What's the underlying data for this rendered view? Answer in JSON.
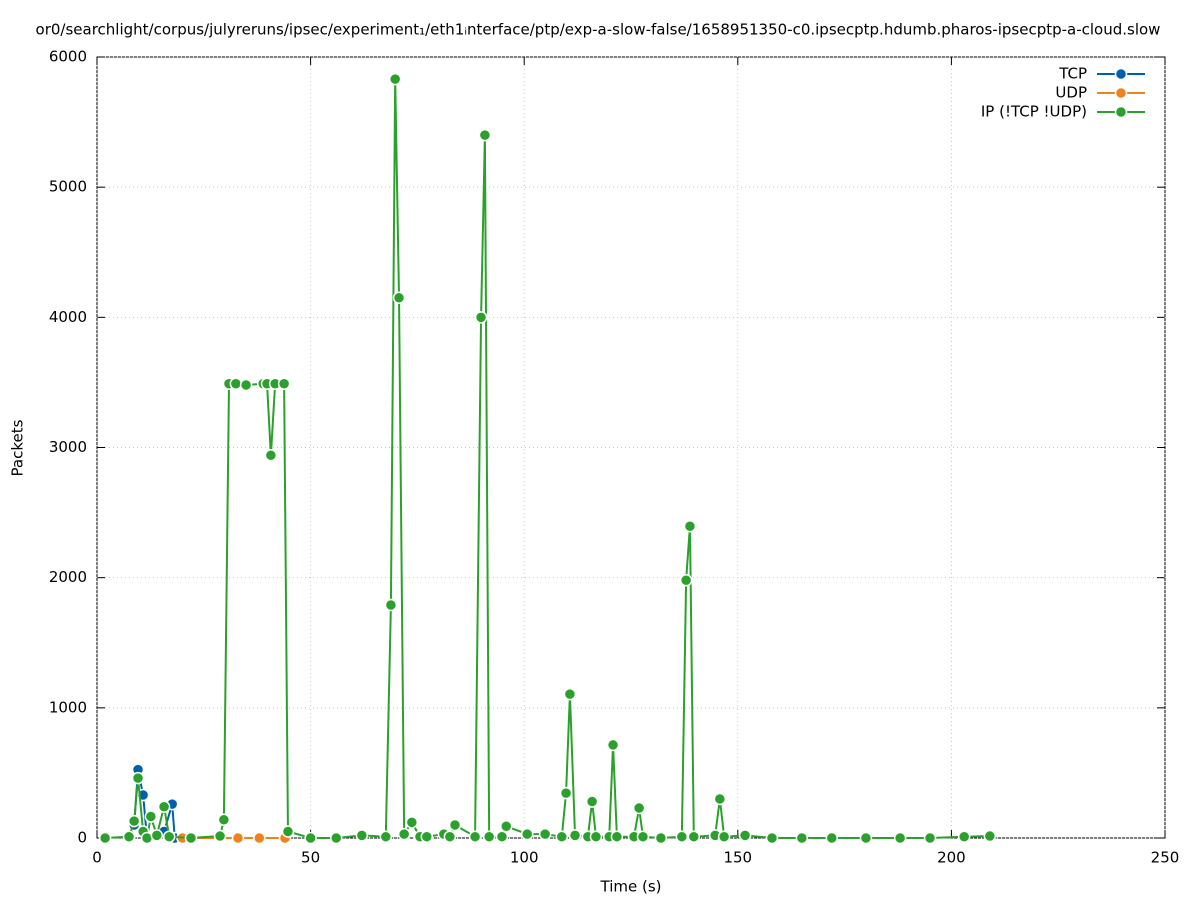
{
  "chart_data": {
    "type": "line",
    "title": "or0/searchlight/corpus/julyreruns/ipsec/experiment₁/eth1ᵢnterface/ptp/exp-a-slow-false/1658951350-c0.ipsecptp.hdumb.pharos-ipsecptp-a-cloud.slow",
    "x_label": "Time (s)",
    "y_label": "Packets",
    "xlim": [
      0,
      250
    ],
    "xticks": [
      0,
      50,
      100,
      150,
      200,
      250
    ],
    "ylim": [
      0,
      6000
    ],
    "yticks": [
      0,
      1000,
      2000,
      3000,
      4000,
      5000,
      6000
    ],
    "grid": true,
    "legend": "top-right",
    "series": [
      {
        "name": "TCP",
        "color": "#0060ad",
        "x": [
          7.5,
          8.7,
          9.6,
          10.8,
          11.7,
          15.7,
          17.6,
          18.2
        ],
        "values": [
          0,
          100,
          525,
          330,
          0,
          50,
          260,
          0
        ]
      },
      {
        "name": "UDP",
        "color": "#f0821e",
        "x": [
          20,
          33,
          38,
          44
        ],
        "values": [
          0,
          0,
          0,
          0
        ]
      },
      {
        "name": "IP (!TCP  !UDP)",
        "color": "#2ca02c",
        "x": [
          1.9,
          7.5,
          8.7,
          9.6,
          10.8,
          11.7,
          12.6,
          14,
          15.7,
          16.9,
          22,
          28.8,
          29.7,
          30.9,
          32.5,
          34.9,
          38.9,
          39.8,
          40.7,
          41.7,
          43.8,
          44.7,
          50,
          56,
          62,
          67.6,
          68.8,
          69.8,
          70.7,
          71.9,
          73.7,
          75.6,
          77.2,
          81.2,
          82.6,
          83.8,
          88.5,
          89.9,
          90.8,
          91.8,
          94.8,
          95.8,
          100.7,
          104.9,
          108.8,
          109.8,
          110.7,
          111.9,
          114.9,
          115.9,
          116.8,
          119.9,
          120.8,
          121.7,
          125.7,
          126.9,
          127.8,
          132,
          136.9,
          137.9,
          138.8,
          139.7,
          144.7,
          145.8,
          146.8,
          151.7,
          158,
          165,
          172,
          180,
          188,
          195,
          203,
          209
        ],
        "values": [
          0,
          10,
          130,
          460,
          50,
          0,
          165,
          20,
          240,
          10,
          0,
          15,
          140,
          3490,
          3490,
          3480,
          3490,
          3490,
          2940,
          3490,
          3490,
          50,
          0,
          0,
          20,
          10,
          1790,
          5830,
          4150,
          30,
          120,
          10,
          10,
          30,
          10,
          100,
          10,
          4000,
          5400,
          10,
          10,
          90,
          30,
          30,
          10,
          345,
          1105,
          20,
          10,
          280,
          10,
          10,
          715,
          10,
          10,
          230,
          10,
          0,
          10,
          1980,
          2395,
          10,
          20,
          300,
          10,
          20,
          0,
          0,
          0,
          0,
          0,
          0,
          10,
          15
        ]
      }
    ]
  }
}
